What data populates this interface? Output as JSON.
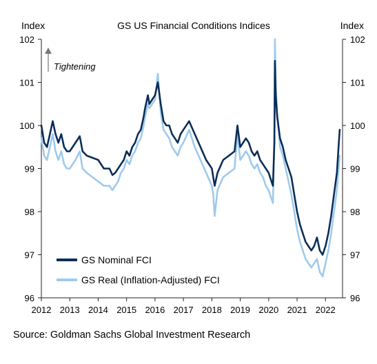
{
  "chart_data": {
    "type": "line",
    "title": "GS US Financial Conditions Indices",
    "ylabel_left": "Index",
    "ylabel_right": "Index",
    "annotation": "Tightening",
    "source": "Source: Goldman Sachs Global Investment Research",
    "ylim": [
      96,
      102
    ],
    "y_ticks": [
      "96",
      "97",
      "98",
      "99",
      "100",
      "101",
      "102"
    ],
    "xlim": [
      2012.0,
      2022.6
    ],
    "x_ticks": [
      "2012",
      "2013",
      "2014",
      "2015",
      "2016",
      "2017",
      "2018",
      "2019",
      "2020",
      "2021",
      "2022"
    ],
    "legend_position": "bottom-left",
    "grid": false,
    "series": [
      {
        "name": "GS Nominal FCI",
        "color": "#0b2d57",
        "x": [
          2012.0,
          2012.1,
          2012.2,
          2012.3,
          2012.4,
          2012.5,
          2012.6,
          2012.7,
          2012.8,
          2012.9,
          2013.0,
          2013.2,
          2013.35,
          2013.45,
          2013.6,
          2013.8,
          2014.0,
          2014.2,
          2014.4,
          2014.5,
          2014.6,
          2014.7,
          2014.8,
          2014.9,
          2015.0,
          2015.1,
          2015.2,
          2015.3,
          2015.4,
          2015.5,
          2015.6,
          2015.65,
          2015.75,
          2015.8,
          2015.9,
          2016.0,
          2016.1,
          2016.2,
          2016.3,
          2016.4,
          2016.5,
          2016.6,
          2016.7,
          2016.8,
          2016.9,
          2017.0,
          2017.2,
          2017.4,
          2017.6,
          2017.8,
          2018.0,
          2018.05,
          2018.1,
          2018.2,
          2018.4,
          2018.6,
          2018.8,
          2018.9,
          2019.0,
          2019.1,
          2019.2,
          2019.3,
          2019.4,
          2019.5,
          2019.6,
          2019.7,
          2019.8,
          2019.9,
          2020.0,
          2020.1,
          2020.15,
          2020.2,
          2020.22,
          2020.25,
          2020.3,
          2020.4,
          2020.5,
          2020.6,
          2020.7,
          2020.8,
          2020.9,
          2021.0,
          2021.1,
          2021.2,
          2021.3,
          2021.4,
          2021.5,
          2021.6,
          2021.7,
          2021.8,
          2021.9,
          2022.0,
          2022.1,
          2022.2,
          2022.3,
          2022.4,
          2022.45,
          2022.5
        ],
        "y": [
          100.0,
          99.6,
          99.5,
          99.8,
          100.1,
          99.8,
          99.6,
          99.8,
          99.5,
          99.4,
          99.4,
          99.6,
          99.75,
          99.4,
          99.3,
          99.25,
          99.2,
          99.0,
          99.0,
          98.85,
          98.9,
          99.0,
          99.1,
          99.2,
          99.4,
          99.3,
          99.5,
          99.6,
          99.8,
          99.9,
          100.2,
          100.4,
          100.7,
          100.5,
          100.6,
          100.7,
          101.0,
          100.5,
          100.1,
          100.0,
          100.0,
          99.8,
          99.7,
          99.6,
          99.8,
          99.9,
          100.1,
          99.8,
          99.5,
          99.2,
          99.0,
          98.8,
          98.6,
          98.9,
          99.2,
          99.3,
          99.4,
          100.0,
          99.5,
          99.6,
          99.7,
          99.6,
          99.4,
          99.3,
          99.4,
          99.2,
          99.1,
          99.0,
          98.9,
          98.7,
          98.6,
          99.6,
          101.5,
          100.7,
          100.2,
          99.7,
          99.5,
          99.2,
          99.0,
          98.8,
          98.4,
          98.0,
          97.7,
          97.5,
          97.3,
          97.2,
          97.1,
          97.2,
          97.4,
          97.1,
          97.0,
          97.2,
          97.5,
          97.9,
          98.4,
          98.9,
          99.4,
          99.9
        ]
      },
      {
        "name": "GS Real (Inflation-Adjusted) FCI",
        "color": "#9fcaeb",
        "x": [
          2012.0,
          2012.1,
          2012.2,
          2012.3,
          2012.4,
          2012.5,
          2012.6,
          2012.7,
          2012.8,
          2012.9,
          2013.0,
          2013.2,
          2013.35,
          2013.45,
          2013.6,
          2013.8,
          2014.0,
          2014.2,
          2014.4,
          2014.5,
          2014.6,
          2014.7,
          2014.8,
          2014.9,
          2015.0,
          2015.1,
          2015.2,
          2015.3,
          2015.4,
          2015.5,
          2015.6,
          2015.65,
          2015.75,
          2015.8,
          2015.9,
          2016.0,
          2016.1,
          2016.2,
          2016.3,
          2016.4,
          2016.5,
          2016.6,
          2016.7,
          2016.8,
          2016.9,
          2017.0,
          2017.2,
          2017.4,
          2017.6,
          2017.8,
          2018.0,
          2018.05,
          2018.1,
          2018.2,
          2018.4,
          2018.6,
          2018.8,
          2018.9,
          2019.0,
          2019.1,
          2019.2,
          2019.3,
          2019.4,
          2019.5,
          2019.6,
          2019.7,
          2019.8,
          2019.9,
          2020.0,
          2020.1,
          2020.15,
          2020.2,
          2020.22,
          2020.25,
          2020.3,
          2020.4,
          2020.5,
          2020.6,
          2020.7,
          2020.8,
          2020.9,
          2021.0,
          2021.1,
          2021.2,
          2021.3,
          2021.4,
          2021.5,
          2021.6,
          2021.7,
          2021.8,
          2021.9,
          2022.0,
          2022.1,
          2022.2,
          2022.3,
          2022.4,
          2022.45,
          2022.5
        ],
        "y": [
          99.7,
          99.3,
          99.2,
          99.5,
          99.8,
          99.4,
          99.2,
          99.4,
          99.1,
          99.0,
          99.0,
          99.2,
          99.4,
          99.0,
          98.9,
          98.8,
          98.7,
          98.6,
          98.6,
          98.5,
          98.6,
          98.7,
          98.9,
          99.0,
          99.2,
          99.1,
          99.3,
          99.4,
          99.6,
          99.7,
          100.0,
          100.2,
          100.5,
          100.4,
          100.5,
          100.6,
          101.2,
          100.3,
          99.9,
          99.8,
          99.7,
          99.5,
          99.4,
          99.3,
          99.5,
          99.6,
          99.9,
          99.5,
          99.2,
          98.9,
          98.6,
          98.4,
          97.9,
          98.5,
          98.8,
          98.9,
          99.0,
          99.8,
          99.2,
          99.3,
          99.4,
          99.3,
          99.1,
          99.0,
          99.1,
          98.9,
          98.8,
          98.6,
          98.5,
          98.3,
          98.2,
          99.8,
          102.0,
          100.9,
          100.3,
          99.5,
          99.3,
          99.0,
          98.7,
          98.4,
          98.0,
          97.6,
          97.3,
          97.1,
          96.9,
          96.8,
          96.7,
          96.8,
          96.9,
          96.6,
          96.5,
          96.8,
          97.1,
          97.5,
          98.0,
          98.5,
          98.9,
          99.3
        ]
      }
    ]
  }
}
